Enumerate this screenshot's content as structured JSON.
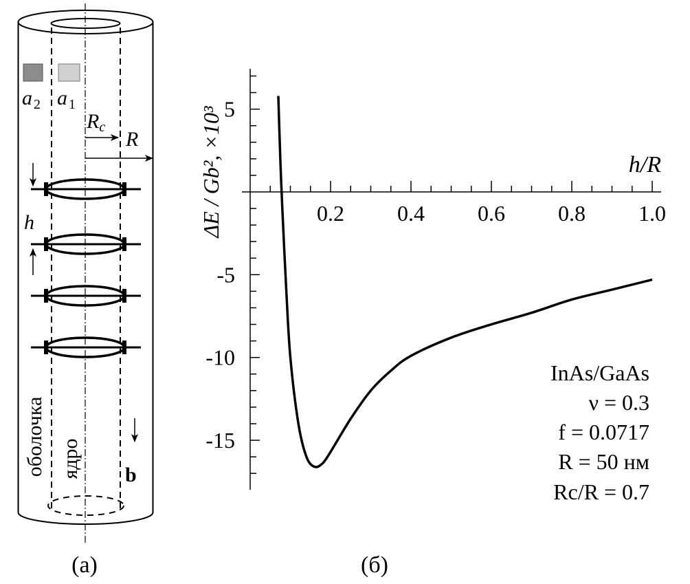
{
  "diagram": {
    "labels": {
      "a2": "a",
      "a2_sub": "2",
      "a1": "a",
      "a1_sub": "1",
      "Rc": "R",
      "Rc_sub": "c",
      "R": "R",
      "h": "h",
      "b": "b",
      "shell": "оболочка",
      "core": "ядро"
    },
    "colors": {
      "a2_square": "#8c8c8c",
      "a1_square": "#d0d0d0"
    },
    "caption": "(a)"
  },
  "chart_data": {
    "type": "line",
    "caption": "(б)",
    "xlabel": "h/R",
    "ylabel": "ΔE / Gb², ×10³",
    "xlim": [
      0,
      1.02
    ],
    "ylim": [
      -17.5,
      7.5
    ],
    "x_ticks": [
      "0.2",
      "0.4",
      "0.6",
      "0.8",
      "1.0"
    ],
    "x_tick_values": [
      0.2,
      0.4,
      0.6,
      0.8,
      1.0
    ],
    "y_ticks": [
      "5",
      "-5",
      "-10",
      "-15"
    ],
    "y_tick_values": [
      5,
      -5,
      -10,
      -15
    ],
    "grid": false,
    "series": [
      {
        "x": [
          0.07,
          0.075,
          0.08,
          0.09,
          0.1,
          0.12,
          0.14,
          0.16,
          0.18,
          0.2,
          0.25,
          0.3,
          0.35,
          0.4,
          0.5,
          0.6,
          0.7,
          0.8,
          0.9,
          1.0
        ],
        "y": [
          5.8,
          2.0,
          -1.0,
          -6.0,
          -10.0,
          -14.0,
          -16.0,
          -16.6,
          -16.4,
          -15.7,
          -13.7,
          -12.0,
          -10.8,
          -9.9,
          -8.8,
          -8.0,
          -7.3,
          -6.5,
          -5.9,
          -5.3
        ]
      }
    ],
    "annotations": [
      "InAs/GaAs",
      "ν = 0.3",
      "f = 0.0717",
      "R = 50 нм",
      "Rc/R = 0.7"
    ]
  }
}
